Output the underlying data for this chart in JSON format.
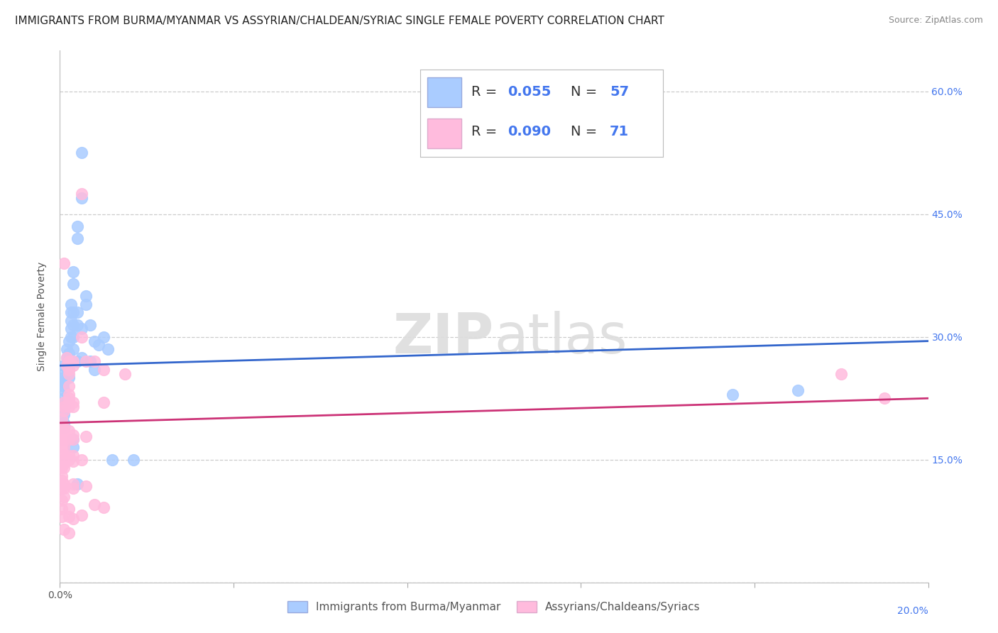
{
  "title": "IMMIGRANTS FROM BURMA/MYANMAR VS ASSYRIAN/CHALDEAN/SYRIAC SINGLE FEMALE POVERTY CORRELATION CHART",
  "source": "Source: ZipAtlas.com",
  "ylabel": "Single Female Poverty",
  "xlim": [
    0.0,
    0.2
  ],
  "ylim": [
    0.0,
    0.65
  ],
  "xticks": [
    0.0,
    0.04,
    0.08,
    0.12,
    0.16,
    0.2
  ],
  "yticks": [
    0.0,
    0.15,
    0.3,
    0.45,
    0.6
  ],
  "ytick_labels": [
    "",
    "15.0%",
    "30.0%",
    "45.0%",
    "60.0%"
  ],
  "legend_R_blue": "0.055",
  "legend_N_blue": "57",
  "legend_R_pink": "0.090",
  "legend_N_pink": "71",
  "blue_color": "#aaccff",
  "pink_color": "#ffbbdd",
  "blue_line_color": "#3366cc",
  "pink_line_color": "#cc3377",
  "watermark_zip": "ZIP",
  "watermark_atlas": "atlas",
  "blue_scatter": [
    [
      0.0008,
      0.255
    ],
    [
      0.0008,
      0.245
    ],
    [
      0.0008,
      0.24
    ],
    [
      0.001,
      0.265
    ],
    [
      0.001,
      0.25
    ],
    [
      0.001,
      0.245
    ],
    [
      0.001,
      0.235
    ],
    [
      0.001,
      0.225
    ],
    [
      0.001,
      0.215
    ],
    [
      0.001,
      0.205
    ],
    [
      0.001,
      0.195
    ],
    [
      0.001,
      0.19
    ],
    [
      0.0015,
      0.285
    ],
    [
      0.0015,
      0.275
    ],
    [
      0.0015,
      0.265
    ],
    [
      0.002,
      0.295
    ],
    [
      0.002,
      0.28
    ],
    [
      0.002,
      0.27
    ],
    [
      0.002,
      0.26
    ],
    [
      0.002,
      0.25
    ],
    [
      0.0025,
      0.34
    ],
    [
      0.0025,
      0.33
    ],
    [
      0.0025,
      0.32
    ],
    [
      0.0025,
      0.31
    ],
    [
      0.0025,
      0.3
    ],
    [
      0.003,
      0.38
    ],
    [
      0.003,
      0.365
    ],
    [
      0.003,
      0.33
    ],
    [
      0.003,
      0.315
    ],
    [
      0.003,
      0.3
    ],
    [
      0.003,
      0.285
    ],
    [
      0.004,
      0.435
    ],
    [
      0.004,
      0.42
    ],
    [
      0.004,
      0.33
    ],
    [
      0.004,
      0.315
    ],
    [
      0.004,
      0.27
    ],
    [
      0.005,
      0.525
    ],
    [
      0.005,
      0.47
    ],
    [
      0.005,
      0.31
    ],
    [
      0.005,
      0.275
    ],
    [
      0.006,
      0.35
    ],
    [
      0.006,
      0.34
    ],
    [
      0.007,
      0.315
    ],
    [
      0.007,
      0.27
    ],
    [
      0.008,
      0.295
    ],
    [
      0.008,
      0.26
    ],
    [
      0.009,
      0.29
    ],
    [
      0.01,
      0.3
    ],
    [
      0.011,
      0.285
    ],
    [
      0.012,
      0.15
    ],
    [
      0.017,
      0.15
    ],
    [
      0.004,
      0.12
    ],
    [
      0.003,
      0.165
    ],
    [
      0.003,
      0.175
    ],
    [
      0.17,
      0.235
    ],
    [
      0.155,
      0.23
    ]
  ],
  "pink_scatter": [
    [
      0.0005,
      0.2
    ],
    [
      0.0005,
      0.19
    ],
    [
      0.0005,
      0.185
    ],
    [
      0.0005,
      0.175
    ],
    [
      0.0005,
      0.165
    ],
    [
      0.0005,
      0.155
    ],
    [
      0.0005,
      0.145
    ],
    [
      0.0005,
      0.14
    ],
    [
      0.0005,
      0.13
    ],
    [
      0.0005,
      0.125
    ],
    [
      0.0005,
      0.115
    ],
    [
      0.0005,
      0.1
    ],
    [
      0.0005,
      0.09
    ],
    [
      0.0005,
      0.08
    ],
    [
      0.001,
      0.39
    ],
    [
      0.001,
      0.22
    ],
    [
      0.001,
      0.215
    ],
    [
      0.001,
      0.21
    ],
    [
      0.001,
      0.19
    ],
    [
      0.001,
      0.185
    ],
    [
      0.001,
      0.18
    ],
    [
      0.001,
      0.175
    ],
    [
      0.001,
      0.165
    ],
    [
      0.001,
      0.155
    ],
    [
      0.001,
      0.15
    ],
    [
      0.001,
      0.145
    ],
    [
      0.001,
      0.14
    ],
    [
      0.001,
      0.12
    ],
    [
      0.001,
      0.115
    ],
    [
      0.001,
      0.105
    ],
    [
      0.001,
      0.065
    ],
    [
      0.0015,
      0.275
    ],
    [
      0.0015,
      0.265
    ],
    [
      0.002,
      0.27
    ],
    [
      0.002,
      0.26
    ],
    [
      0.002,
      0.255
    ],
    [
      0.002,
      0.24
    ],
    [
      0.002,
      0.23
    ],
    [
      0.002,
      0.225
    ],
    [
      0.002,
      0.22
    ],
    [
      0.002,
      0.215
    ],
    [
      0.002,
      0.185
    ],
    [
      0.002,
      0.175
    ],
    [
      0.002,
      0.155
    ],
    [
      0.002,
      0.15
    ],
    [
      0.002,
      0.09
    ],
    [
      0.002,
      0.08
    ],
    [
      0.002,
      0.06
    ],
    [
      0.003,
      0.27
    ],
    [
      0.003,
      0.265
    ],
    [
      0.003,
      0.22
    ],
    [
      0.003,
      0.215
    ],
    [
      0.003,
      0.18
    ],
    [
      0.003,
      0.175
    ],
    [
      0.003,
      0.155
    ],
    [
      0.003,
      0.148
    ],
    [
      0.003,
      0.12
    ],
    [
      0.003,
      0.115
    ],
    [
      0.003,
      0.078
    ],
    [
      0.005,
      0.475
    ],
    [
      0.005,
      0.3
    ],
    [
      0.005,
      0.15
    ],
    [
      0.005,
      0.082
    ],
    [
      0.006,
      0.27
    ],
    [
      0.006,
      0.178
    ],
    [
      0.006,
      0.118
    ],
    [
      0.008,
      0.27
    ],
    [
      0.008,
      0.095
    ],
    [
      0.01,
      0.26
    ],
    [
      0.01,
      0.22
    ],
    [
      0.01,
      0.092
    ],
    [
      0.015,
      0.255
    ],
    [
      0.18,
      0.255
    ],
    [
      0.19,
      0.225
    ]
  ],
  "background_color": "#ffffff",
  "grid_color": "#cccccc",
  "title_fontsize": 11,
  "axis_label_fontsize": 10,
  "tick_fontsize": 10,
  "legend_fontsize": 14,
  "right_ytick_color": "#4477ee",
  "label_color": "#555555"
}
